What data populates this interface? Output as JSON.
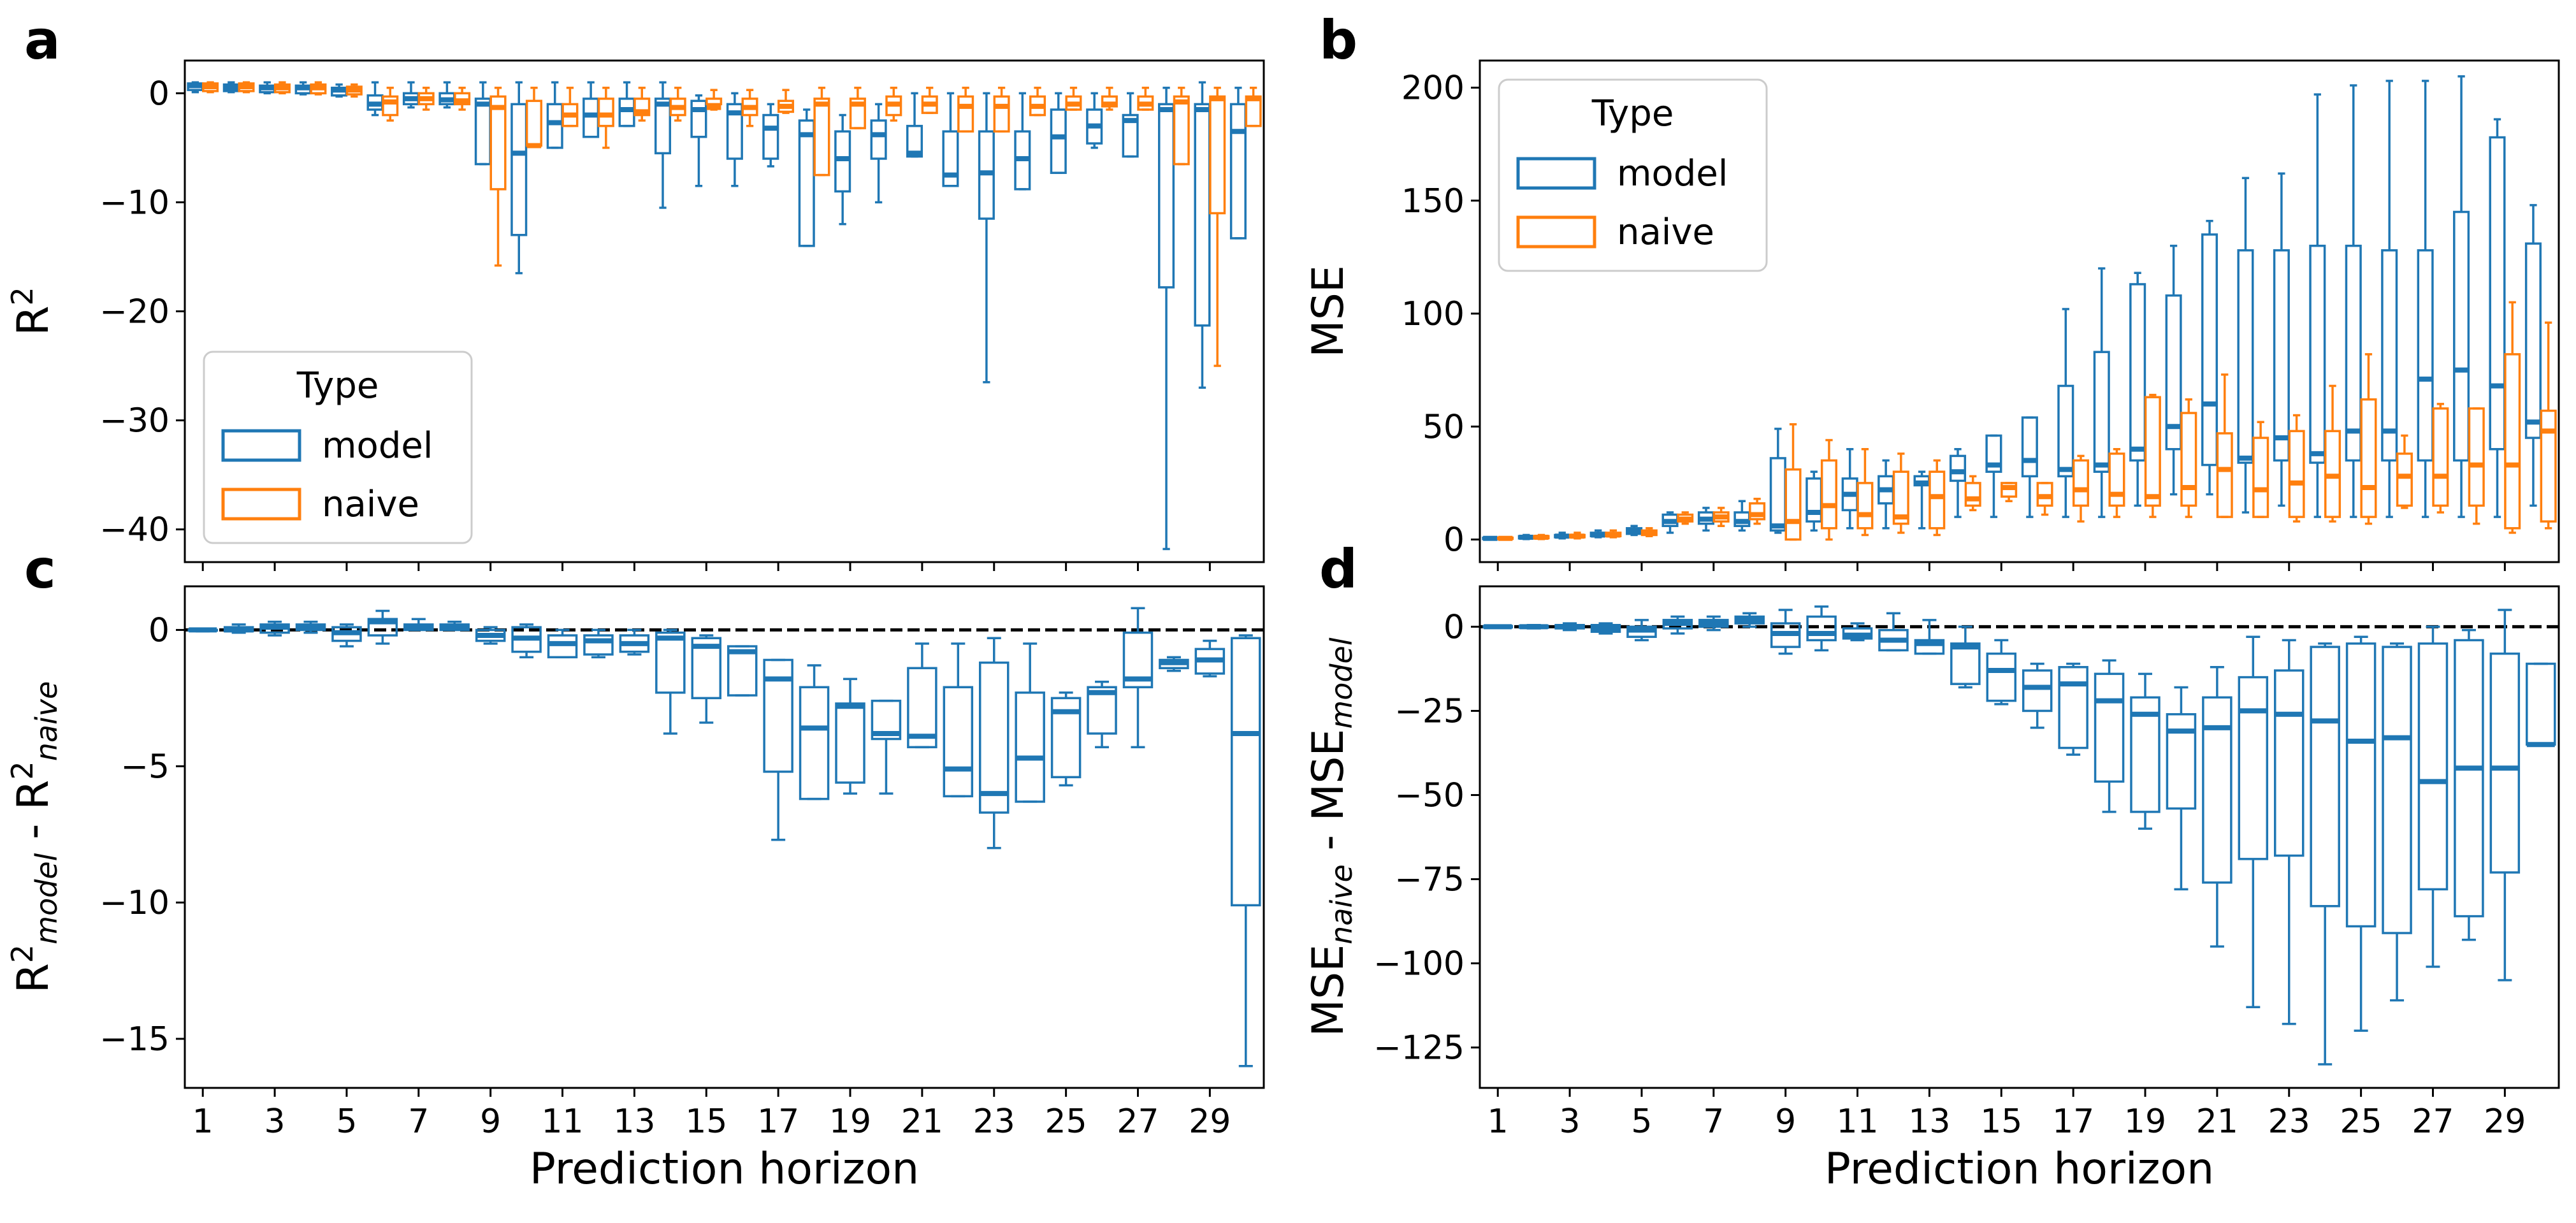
{
  "colors": {
    "model": "#1f77b4",
    "naive": "#ff7f0e"
  },
  "chart_data": [
    {
      "panel": "a",
      "type": "box",
      "ylabel": "R",
      "ylabel_sup": "2",
      "xlabel": "",
      "ylim": [
        -43,
        3
      ],
      "yticks": [
        0,
        -10,
        -20,
        -30,
        -40
      ],
      "ytick_labels": [
        "0",
        "−10",
        "−20",
        "−30",
        "−40"
      ],
      "legend": {
        "title": "Type",
        "placement": "lower-left",
        "entries": [
          "model",
          "naive"
        ]
      },
      "series": [
        {
          "name": "model",
          "med": [
            0.7,
            0.5,
            0.5,
            0.5,
            0.3,
            -1,
            -0.5,
            -0.6,
            -1,
            -5.5,
            -2.7,
            -2,
            -1.5,
            -1,
            -1.5,
            -1.8,
            -3.2,
            -3.8,
            -6,
            -3.8,
            -5.5,
            -7.5,
            -7.3,
            -6,
            -4,
            -3,
            -2.5,
            -1.5,
            -1.5,
            -3.5
          ],
          "q1": [
            0.3,
            0.2,
            0.1,
            0,
            -0.2,
            -1.5,
            -1,
            -1,
            -6.5,
            -13,
            -5,
            -4,
            -3,
            -5.5,
            -4,
            -6,
            -6,
            -14,
            -9,
            -6,
            -5.8,
            -8.5,
            -11.5,
            -8.8,
            -7.3,
            -4.6,
            -5.8,
            -17.8,
            -21.3,
            -13.3
          ],
          "q3": [
            0.9,
            0.8,
            0.7,
            0.7,
            0.5,
            -0.2,
            0,
            0,
            -0.5,
            -1,
            -1,
            -0.5,
            -0.5,
            -0.5,
            -0.7,
            -1,
            -2,
            -2.5,
            -3.5,
            -2.5,
            -3,
            -3.5,
            -3.5,
            -3.5,
            -1.5,
            -1.5,
            -2,
            -1,
            -1,
            -1
          ],
          "wlo": [
            0.1,
            0.1,
            0,
            -0.1,
            -0.3,
            -2,
            -1.3,
            -1.3,
            -6.5,
            -16.5,
            -5,
            -4,
            -3,
            -10.5,
            -8.5,
            -8.5,
            -6.7,
            -14,
            -12,
            -10,
            -5.8,
            -8.5,
            -26.5,
            -8.8,
            -7.3,
            -5,
            -5.8,
            -41.8,
            -27,
            -13.3
          ],
          "whi": [
            1,
            1,
            1,
            1,
            0.8,
            1,
            1,
            1,
            1,
            1,
            1,
            1,
            1,
            1,
            -0.2,
            0,
            -1,
            -1.5,
            -2,
            -1,
            0,
            0,
            0,
            0,
            0,
            0,
            0,
            0.5,
            1,
            0.5
          ]
        },
        {
          "name": "naive",
          "med": [
            0.6,
            0.6,
            0.5,
            0.5,
            0.3,
            -0.8,
            -0.5,
            -0.7,
            -1.3,
            -4.8,
            -2,
            -2,
            -1.7,
            -1.3,
            -1.3,
            -1.3,
            -1.2,
            -1,
            -1,
            -1,
            -1,
            -1.2,
            -1.2,
            -1.2,
            -1,
            -1,
            -1,
            -0.8,
            -0.5,
            -0.5
          ],
          "q1": [
            0.2,
            0.2,
            0.1,
            0,
            -0.1,
            -2,
            -1,
            -1,
            -8.8,
            -4.8,
            -3,
            -3,
            -2,
            -2,
            -1,
            -2,
            -1.7,
            -7.5,
            -3.2,
            -2,
            -1.8,
            -3.5,
            -3.5,
            -2,
            -1.5,
            -1.2,
            -1.5,
            -6.5,
            -11,
            -3
          ],
          "q3": [
            0.9,
            0.9,
            0.8,
            0.8,
            0.6,
            -0.3,
            0,
            0,
            -0.3,
            -0.7,
            -1,
            -0.5,
            -0.5,
            -0.5,
            -0.5,
            -0.5,
            -0.7,
            -0.5,
            -0.5,
            -0.3,
            -0.3,
            -0.3,
            -0.3,
            -0.3,
            -0.3,
            -0.3,
            -0.3,
            -0.3,
            -0.3,
            -0.3
          ],
          "wlo": [
            0.1,
            0.1,
            0,
            -0.1,
            -0.3,
            -2.5,
            -1.5,
            -1.5,
            -15.8,
            -4.8,
            -3,
            -5,
            -2.5,
            -2.5,
            -1.5,
            -3,
            -1.8,
            -7.5,
            -3.2,
            -2.5,
            -1.8,
            -3.5,
            -3.5,
            -2,
            -1.5,
            -1.5,
            -1.5,
            -6.5,
            -25,
            -3
          ],
          "whi": [
            1,
            1,
            1,
            1,
            0.8,
            0.5,
            0.5,
            0.5,
            0.5,
            0.5,
            0.5,
            0.5,
            0.5,
            0.5,
            0.3,
            0.3,
            0.3,
            0.5,
            0.5,
            0.5,
            0.5,
            0.5,
            0.5,
            0.5,
            0.5,
            0.5,
            0.5,
            0.5,
            0.5,
            0.5
          ]
        }
      ]
    },
    {
      "panel": "b",
      "type": "box",
      "ylabel": "MSE",
      "xlabel": "",
      "ylim": [
        -10,
        212
      ],
      "yticks": [
        0,
        50,
        100,
        150,
        200
      ],
      "ytick_labels": [
        "0",
        "50",
        "100",
        "150",
        "200"
      ],
      "legend": {
        "title": "Type",
        "placement": "upper-left",
        "entries": [
          "model",
          "naive"
        ]
      },
      "series": [
        {
          "name": "model",
          "med": [
            0.5,
            1,
            1.5,
            2,
            4,
            8,
            9,
            8,
            6,
            12,
            20,
            22,
            25,
            30,
            33,
            35,
            31,
            33,
            40,
            50,
            60,
            36,
            45,
            38,
            48,
            48,
            71,
            75,
            68,
            52
          ],
          "q1": [
            0.2,
            0.5,
            1,
            1.5,
            2.5,
            6,
            7,
            6,
            4,
            8,
            13,
            16,
            24,
            26,
            30,
            28,
            28,
            30,
            35,
            40,
            33,
            34,
            35,
            34,
            35,
            35,
            35,
            35,
            40,
            45
          ],
          "q3": [
            0.8,
            1.5,
            2,
            3,
            5,
            11,
            12,
            12,
            36,
            27,
            27,
            28,
            28,
            37,
            46,
            54,
            68,
            83,
            113,
            108,
            135,
            128,
            128,
            130,
            130,
            128,
            128,
            145,
            178,
            131
          ],
          "wlo": [
            0,
            0.2,
            0.5,
            1,
            2,
            3,
            4,
            4,
            3,
            4,
            5,
            5,
            5,
            10,
            10,
            10,
            10,
            10,
            15,
            20,
            20,
            12,
            15,
            10,
            10,
            10,
            10,
            10,
            10,
            15
          ],
          "whi": [
            1,
            2,
            3,
            4,
            6,
            12,
            14,
            17,
            49,
            30,
            40,
            35,
            30,
            40,
            46,
            54,
            102,
            120,
            118,
            130,
            141,
            160,
            162,
            197,
            201,
            203,
            203,
            205,
            186,
            148
          ]
        },
        {
          "name": "naive",
          "med": [
            0.5,
            1,
            1.5,
            2,
            3,
            9,
            10,
            11,
            8,
            15,
            11,
            10,
            19,
            18,
            23,
            19,
            22,
            20,
            19,
            23,
            31,
            22,
            25,
            28,
            23,
            28,
            28,
            33,
            33,
            48
          ],
          "q1": [
            0.3,
            0.6,
            1,
            1.5,
            2,
            8,
            8,
            9,
            0,
            5,
            5,
            7,
            5,
            15,
            19,
            15,
            15,
            15,
            15,
            15,
            10,
            10,
            10,
            10,
            10,
            15,
            15,
            15,
            5,
            8
          ],
          "q3": [
            0.8,
            1.5,
            2,
            3,
            4,
            11,
            12,
            16,
            31,
            35,
            25,
            30,
            30,
            25,
            25,
            25,
            35,
            38,
            63,
            56,
            47,
            45,
            48,
            48,
            62,
            38,
            58,
            58,
            82,
            57
          ],
          "wlo": [
            0.1,
            0.2,
            0.5,
            1,
            1.5,
            7,
            6,
            7,
            0,
            0,
            2,
            3,
            2,
            13,
            17,
            11,
            8,
            10,
            10,
            10,
            10,
            10,
            8,
            8,
            7,
            14,
            12,
            7,
            3,
            5
          ],
          "whi": [
            1,
            2,
            3,
            4,
            5,
            12,
            14,
            18,
            51,
            44,
            40,
            38,
            35,
            28,
            25,
            25,
            37,
            40,
            64,
            62,
            73,
            52,
            55,
            68,
            82,
            46,
            60,
            58,
            105,
            96
          ]
        }
      ]
    },
    {
      "panel": "c",
      "type": "box",
      "ylabel": "R",
      "ylabel_sup": "2",
      "ylabel_sub1": "model",
      "ylabel_mid": " - R",
      "ylabel_sup2": "2",
      "ylabel_sub2": "naive",
      "xlabel": "Prediction horizon",
      "ylim": [
        -16.8,
        1.6
      ],
      "yticks": [
        0,
        -5,
        -10,
        -15
      ],
      "ytick_labels": [
        "0",
        "−5",
        "−10",
        "−15"
      ],
      "baseline": 0,
      "xtick_labels": [
        "1",
        "3",
        "5",
        "7",
        "9",
        "11",
        "13",
        "15",
        "17",
        "19",
        "21",
        "23",
        "25",
        "27",
        "29"
      ],
      "series": [
        {
          "name": "model",
          "med": [
            0,
            0,
            0.1,
            0.1,
            -0.1,
            0.3,
            0.1,
            0.1,
            -0.2,
            -0.3,
            -0.5,
            -0.4,
            -0.5,
            -0.3,
            -0.6,
            -0.8,
            -1.8,
            -3.6,
            -2.8,
            -3.8,
            -3.9,
            -5.1,
            -6,
            -4.7,
            -3,
            -2.3,
            -1.8,
            -1.2,
            -1.1,
            -3.8
          ],
          "q1": [
            0,
            -0.05,
            -0.1,
            0,
            -0.4,
            -0.2,
            0,
            0,
            -0.4,
            -0.8,
            -1,
            -0.9,
            -0.8,
            -2.3,
            -2.5,
            -2.4,
            -5.2,
            -6.2,
            -5.6,
            -4,
            -4.3,
            -6.1,
            -6.7,
            -6.3,
            -5.4,
            -3.8,
            -2.1,
            -1.4,
            -1.6,
            -10.1
          ],
          "q3": [
            0,
            0.1,
            0.2,
            0.2,
            0.1,
            0.4,
            0.2,
            0.2,
            0,
            0.1,
            -0.2,
            -0.2,
            -0.2,
            -0.1,
            -0.3,
            -0.6,
            -1.1,
            -2.1,
            -2.7,
            -2.6,
            -1.4,
            -2.1,
            -1.2,
            -2.3,
            -2.5,
            -2.1,
            -0.1,
            -1.1,
            -0.7,
            -0.3
          ],
          "wlo": [
            -0.05,
            -0.1,
            -0.2,
            -0.1,
            -0.6,
            -0.5,
            0,
            0,
            -0.5,
            -1,
            -1,
            -1,
            -0.9,
            -3.8,
            -3.4,
            -2.4,
            -7.7,
            -6.2,
            -6,
            -6,
            -4.3,
            -6.1,
            -8,
            -6.3,
            -5.7,
            -4.3,
            -4.3,
            -1.5,
            -1.7,
            -16
          ],
          "whi": [
            0.05,
            0.2,
            0.3,
            0.3,
            0.2,
            0.7,
            0.4,
            0.3,
            0.1,
            0.2,
            0,
            0,
            0,
            0,
            -0.2,
            -0.6,
            -1.1,
            -1.3,
            -1.8,
            -2.6,
            -0.5,
            -0.5,
            -0.3,
            -0.5,
            -2.3,
            -1.9,
            0.8,
            -1,
            -0.4,
            -0.2
          ]
        }
      ]
    },
    {
      "panel": "d",
      "type": "box",
      "ylabel": "MSE",
      "ylabel_sub1": "naive",
      "ylabel_mid": " - MSE",
      "ylabel_sub2": "model",
      "xlabel": "Prediction horizon",
      "ylim": [
        -137,
        12
      ],
      "yticks": [
        0,
        -25,
        -50,
        -75,
        -100,
        -125
      ],
      "ytick_labels": [
        "0",
        "−25",
        "−50",
        "−75",
        "−100",
        "−125"
      ],
      "baseline": 0,
      "xtick_labels": [
        "1",
        "3",
        "5",
        "7",
        "9",
        "11",
        "13",
        "15",
        "17",
        "19",
        "21",
        "23",
        "25",
        "27",
        "29"
      ],
      "series": [
        {
          "name": "model",
          "med": [
            0,
            0,
            0,
            -0.5,
            -1,
            1,
            1,
            2,
            -2,
            -2,
            -2.5,
            -4,
            -5,
            -6,
            -13,
            -18,
            -17,
            -22,
            -26,
            -31,
            -30,
            -25,
            -26,
            -28,
            -34,
            -33,
            -46,
            -42,
            -42,
            -35
          ],
          "q1": [
            -0.2,
            -0.3,
            -0.5,
            -1.5,
            -3,
            -0.5,
            0,
            1,
            -6,
            -4,
            -3.5,
            -7,
            -8,
            -17,
            -22,
            -25,
            -36,
            -46,
            -55,
            -54,
            -76,
            -69,
            -68,
            -83,
            -89,
            -91,
            -78,
            -86,
            -73,
            -35
          ],
          "q3": [
            0.2,
            0.3,
            0.5,
            0.5,
            0,
            2,
            2,
            3,
            1,
            3,
            -0.5,
            -1,
            -4,
            -5,
            -8,
            -13,
            -12,
            -14,
            -21,
            -26,
            -21,
            -15,
            -13,
            -6,
            -5,
            -6,
            -5,
            -4,
            -8,
            -11
          ],
          "wlo": [
            -0.3,
            -0.5,
            -1,
            -2,
            -4,
            -2,
            -1,
            0,
            -8,
            -7,
            -4,
            -7,
            -8,
            -18,
            -23,
            -30,
            -38,
            -55,
            -60,
            -78,
            -95,
            -113,
            -118,
            -130,
            -120,
            -111,
            -101,
            -93,
            -105,
            -35
          ],
          "whi": [
            0.3,
            0.5,
            1,
            1,
            2,
            3,
            3,
            4,
            5,
            6,
            1,
            4,
            2,
            0,
            -4,
            -11,
            -11,
            -10,
            -14,
            -18,
            -12,
            -3,
            -4,
            -5,
            -3,
            -5,
            0,
            -1,
            5,
            -11
          ]
        }
      ]
    }
  ]
}
